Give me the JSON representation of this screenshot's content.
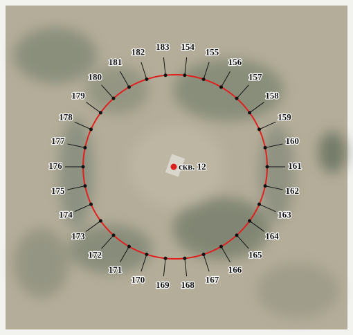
{
  "well_label": "скв. 12",
  "point_labels": [
    "154",
    "155",
    "156",
    "157",
    "158",
    "159",
    "160",
    "161",
    "162",
    "163",
    "164",
    "165",
    "166",
    "167",
    "168",
    "169",
    "170",
    "171",
    "172",
    "173",
    "174",
    "175",
    "176",
    "177",
    "178",
    "179",
    "180",
    "181",
    "182",
    "183"
  ]
}
